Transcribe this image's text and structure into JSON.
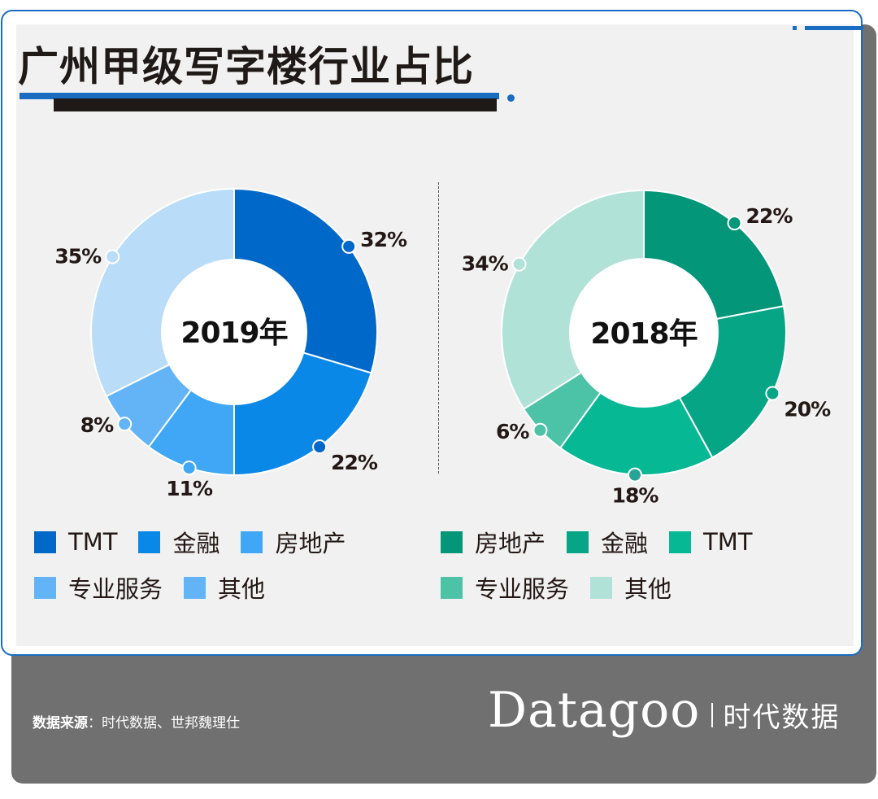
{
  "header": {
    "title": "广州甲级写字楼行业占比"
  },
  "colors": {
    "brand_blue": "#1a6cc0",
    "dark_text": "#231815",
    "footer_gray": "#707070"
  },
  "chart_data": [
    {
      "type": "pie",
      "variant": "donut",
      "title": "2019年",
      "center_label": "2019年",
      "categories": [
        "TMT",
        "金融",
        "房地产",
        "专业服务",
        "其他"
      ],
      "values": [
        32,
        22,
        11,
        8,
        35
      ],
      "labels": [
        "32%",
        "22%",
        "11%",
        "8%",
        "35%"
      ],
      "colors": [
        "#0068c8",
        "#0a88e8",
        "#3fa7f5",
        "#62b4f7",
        "#b9dcf8"
      ],
      "dot_colors": [
        "#0068c8",
        "#0068c8",
        "#3fa7f5",
        "#62b4f7",
        "#b9dcf8"
      ],
      "legend": {
        "placement": "bottom",
        "entries": [
          {
            "label": "TMT",
            "color": "#0068c8"
          },
          {
            "label": "金融",
            "color": "#0a88e8"
          },
          {
            "label": "房地产",
            "color": "#3fa7f5"
          },
          {
            "label": "专业服务",
            "color": "#62b4f7"
          },
          {
            "label": "其他",
            "color": "#62b4f7"
          }
        ]
      }
    },
    {
      "type": "pie",
      "variant": "donut",
      "title": "2018年",
      "center_label": "2018年",
      "categories": [
        "房地产",
        "金融",
        "TMT",
        "专业服务",
        "其他"
      ],
      "values": [
        22,
        20,
        18,
        6,
        34
      ],
      "labels": [
        "22%",
        "20%",
        "18%",
        "6%",
        "34%"
      ],
      "colors": [
        "#039678",
        "#05a585",
        "#06b894",
        "#4cc2a6",
        "#b1e2d8"
      ],
      "dot_colors": [
        "#039678",
        "#05a585",
        "#28a497",
        "#4cc2a6",
        "#b1e2d8"
      ],
      "legend": {
        "placement": "bottom",
        "entries": [
          {
            "label": "房地产",
            "color": "#039678"
          },
          {
            "label": "金融",
            "color": "#05a585"
          },
          {
            "label": "TMT",
            "color": "#06b894"
          },
          {
            "label": "专业服务",
            "color": "#4cc2a6"
          },
          {
            "label": "其他",
            "color": "#b1e2d8"
          }
        ]
      }
    }
  ],
  "footer": {
    "source_label": "数据来源",
    "source_sep": "：",
    "source_text": "时代数据、世邦魏理仕",
    "logo_word": "Datagoo",
    "logo_cn": "时代数据"
  }
}
